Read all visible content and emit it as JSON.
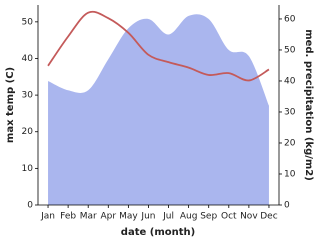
{
  "chart_data": {
    "type": "line",
    "x_label": "date (month)",
    "y_label": "max temp (C)",
    "y2_label": "med. precipitation (kg/m2)",
    "categories": [
      "Jan",
      "Feb",
      "Mar",
      "Apr",
      "May",
      "Jun",
      "Jul",
      "Aug",
      "Sep",
      "Oct",
      "Nov",
      "Dec"
    ],
    "series": [
      {
        "type": "area",
        "axis": "y2",
        "color": "#aab6ee",
        "values": [
          40,
          37,
          37,
          47,
          57,
          60,
          55,
          61,
          60,
          50,
          48,
          32
        ]
      },
      {
        "type": "line",
        "color": "#c45a5a",
        "values": [
          38,
          46,
          52.5,
          51,
          47,
          41,
          39,
          37.5,
          35.5,
          36,
          34,
          37
        ]
      }
    ],
    "ylim": [
      0,
      54.6
    ],
    "yticks": [
      0,
      10,
      20,
      30,
      40,
      50
    ],
    "y2lim": [
      0,
      64.5
    ],
    "y2ticks": [
      0,
      10,
      20,
      30,
      40,
      50,
      60
    ]
  }
}
